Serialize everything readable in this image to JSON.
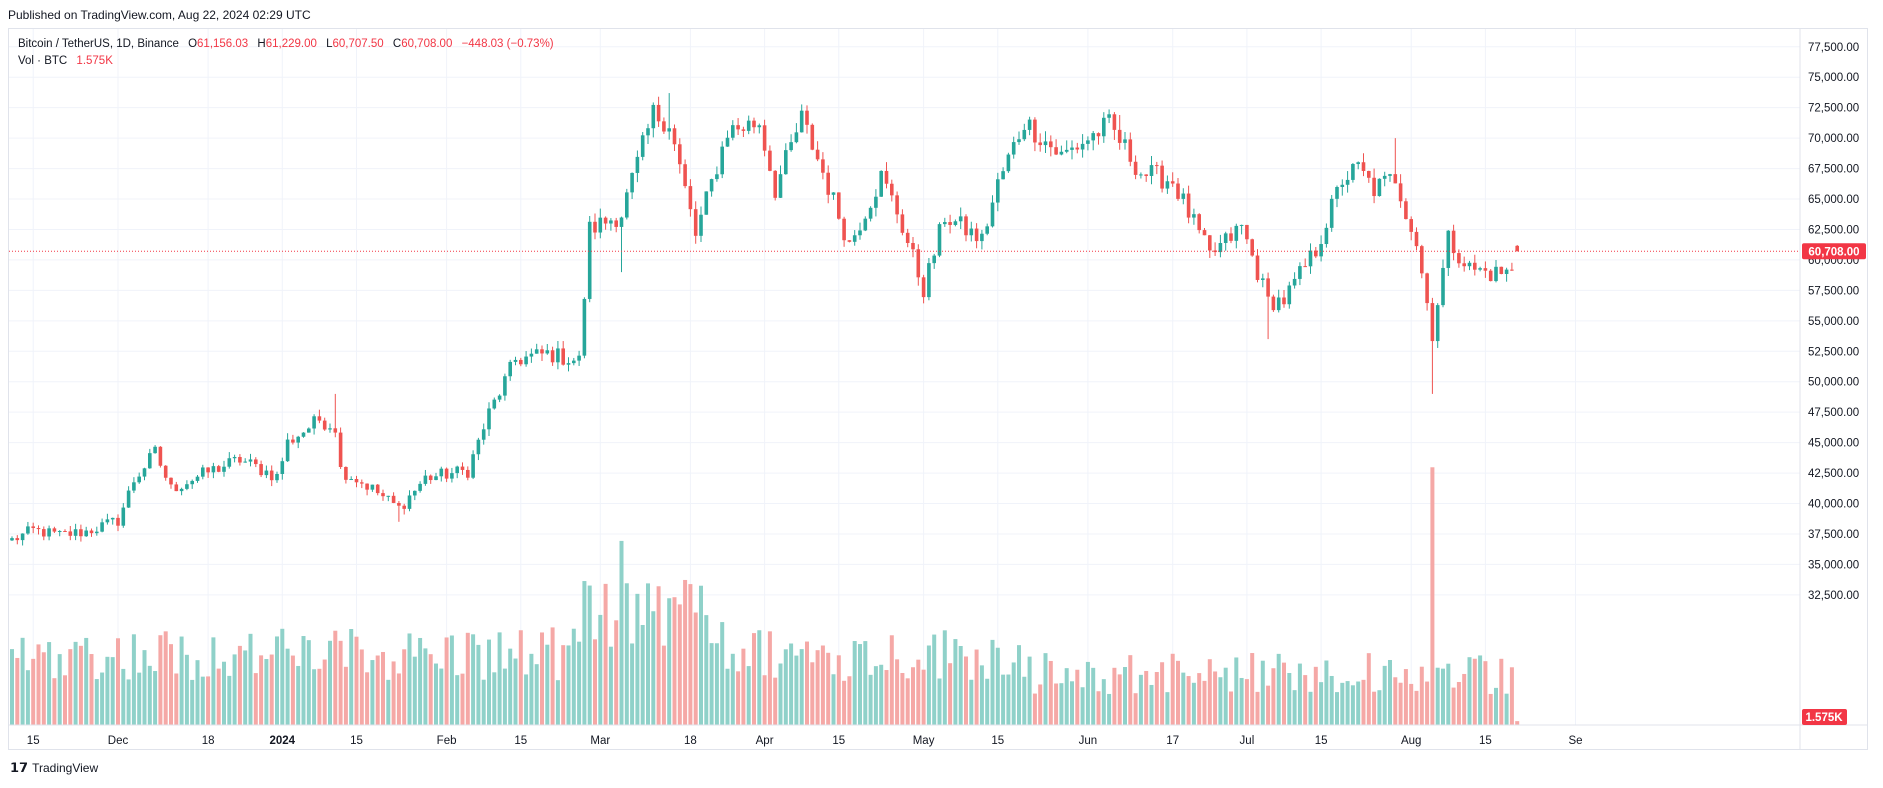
{
  "header": {
    "published": "Published on TradingView.com, Aug 22, 2024 02:29 UTC"
  },
  "legend": {
    "symbol": "Bitcoin / TetherUS, 1D, Binance",
    "o_label": "O",
    "o_value": "61,156.03",
    "h_label": "H",
    "h_value": "61,229.00",
    "l_label": "L",
    "l_value": "60,707.50",
    "c_label": "C",
    "c_value": "60,708.00",
    "change": "−448.03 (−0.73%)",
    "vol_label": "Vol · BTC",
    "vol_value": "1.575K"
  },
  "footer": {
    "brand": "TradingView"
  },
  "colors": {
    "up": "#26a69a",
    "down": "#ef5350",
    "up_vol": "#8fd1c9",
    "down_vol": "#f5a8a6",
    "last_price": "#f23645",
    "grid": "#f0f3fa",
    "axis_text": "#131722"
  },
  "chart_data": {
    "type": "candlestick",
    "symbol": "Bitcoin / TetherUS",
    "interval": "1D",
    "exchange": "Binance",
    "start_date": "2023-11-11",
    "end_date": "2024-08-21",
    "ylim": [
      30500,
      78500
    ],
    "y_ticks": [
      32500,
      35000,
      37500,
      40000,
      42500,
      45000,
      47500,
      50000,
      52500,
      55000,
      57500,
      60000,
      62500,
      65000,
      67500,
      70000,
      72500,
      75000,
      77500
    ],
    "y_tick_labels": [
      "32,500.00",
      "35,000.00",
      "37,500.00",
      "40,000.00",
      "42,500.00",
      "45,000.00",
      "47,500.00",
      "50,000.00",
      "52,500.00",
      "55,000.00",
      "57,500.00",
      "60,000.00",
      "62,500.00",
      "65,000.00",
      "67,500.00",
      "70,000.00",
      "72,500.00",
      "75,000.00",
      "77,500.00"
    ],
    "x_ticks": [
      {
        "label": "15",
        "date": "2023-11-15",
        "bold": false
      },
      {
        "label": "Dec",
        "date": "2023-12-01",
        "bold": false
      },
      {
        "label": "18",
        "date": "2023-12-18",
        "bold": false
      },
      {
        "label": "2024",
        "date": "2024-01-01",
        "bold": true
      },
      {
        "label": "15",
        "date": "2024-01-15",
        "bold": false
      },
      {
        "label": "Feb",
        "date": "2024-02-01",
        "bold": false
      },
      {
        "label": "15",
        "date": "2024-02-15",
        "bold": false
      },
      {
        "label": "Mar",
        "date": "2024-03-01",
        "bold": false
      },
      {
        "label": "18",
        "date": "2024-03-18",
        "bold": false
      },
      {
        "label": "Apr",
        "date": "2024-04-01",
        "bold": false
      },
      {
        "label": "15",
        "date": "2024-04-15",
        "bold": false
      },
      {
        "label": "May",
        "date": "2024-05-01",
        "bold": false
      },
      {
        "label": "15",
        "date": "2024-05-15",
        "bold": false
      },
      {
        "label": "Jun",
        "date": "2024-06-01",
        "bold": false
      },
      {
        "label": "17",
        "date": "2024-06-17",
        "bold": false
      },
      {
        "label": "Jul",
        "date": "2024-07-01",
        "bold": false
      },
      {
        "label": "15",
        "date": "2024-07-15",
        "bold": false
      },
      {
        "label": "Aug",
        "date": "2024-08-01",
        "bold": false
      },
      {
        "label": "15",
        "date": "2024-08-15",
        "bold": false
      },
      {
        "label": "Se",
        "date": "2024-09-01",
        "bold": false
      }
    ],
    "last_price": 60708.0,
    "last_price_label": "60,708.00",
    "last_volume_label": "1.575K",
    "close_keypoints": [
      [
        "2023-11-11",
        37000
      ],
      [
        "2023-11-15",
        37800
      ],
      [
        "2023-11-20",
        37400
      ],
      [
        "2023-11-25",
        37700
      ],
      [
        "2023-12-01",
        38600
      ],
      [
        "2023-12-04",
        41900
      ],
      [
        "2023-12-08",
        44200
      ],
      [
        "2023-12-11",
        41200
      ],
      [
        "2023-12-18",
        42600
      ],
      [
        "2023-12-24",
        43600
      ],
      [
        "2023-12-31",
        42200
      ],
      [
        "2024-01-02",
        45000
      ],
      [
        "2024-01-08",
        46900
      ],
      [
        "2024-01-11",
        46300
      ],
      [
        "2024-01-12",
        42800
      ],
      [
        "2024-01-18",
        41200
      ],
      [
        "2024-01-23",
        39600
      ],
      [
        "2024-01-28",
        42100
      ],
      [
        "2024-02-05",
        42700
      ],
      [
        "2024-02-09",
        47400
      ],
      [
        "2024-02-14",
        51800
      ],
      [
        "2024-02-20",
        52300
      ],
      [
        "2024-02-26",
        51700
      ],
      [
        "2024-02-28",
        62500
      ],
      [
        "2024-03-05",
        63800
      ],
      [
        "2024-03-11",
        72000
      ],
      [
        "2024-03-14",
        71300
      ],
      [
        "2024-03-19",
        62000
      ],
      [
        "2024-03-25",
        70600
      ],
      [
        "2024-03-31",
        71300
      ],
      [
        "2024-04-03",
        65800
      ],
      [
        "2024-04-08",
        71600
      ],
      [
        "2024-04-12",
        67200
      ],
      [
        "2024-04-17",
        61300
      ],
      [
        "2024-04-23",
        66800
      ],
      [
        "2024-04-26",
        64000
      ],
      [
        "2024-05-01",
        57600
      ],
      [
        "2024-05-05",
        63600
      ],
      [
        "2024-05-12",
        61600
      ],
      [
        "2024-05-15",
        66200
      ],
      [
        "2024-05-20",
        71400
      ],
      [
        "2024-05-27",
        68500
      ],
      [
        "2024-06-05",
        71100
      ],
      [
        "2024-06-11",
        67200
      ],
      [
        "2024-06-17",
        66500
      ],
      [
        "2024-06-24",
        60300
      ],
      [
        "2024-06-30",
        62700
      ],
      [
        "2024-07-05",
        56600
      ],
      [
        "2024-07-08",
        56700
      ],
      [
        "2024-07-14",
        60800
      ],
      [
        "2024-07-19",
        66600
      ],
      [
        "2024-07-22",
        67500
      ],
      [
        "2024-07-25",
        65800
      ],
      [
        "2024-07-29",
        66800
      ],
      [
        "2024-08-02",
        61400
      ],
      [
        "2024-08-05",
        54000
      ],
      [
        "2024-08-08",
        61700
      ],
      [
        "2024-08-12",
        59300
      ],
      [
        "2024-08-16",
        58900
      ],
      [
        "2024-08-20",
        59000
      ],
      [
        "2024-08-21",
        60708
      ]
    ],
    "notable_lows": [
      [
        "2024-08-05",
        49000
      ],
      [
        "2024-03-05",
        59000
      ],
      [
        "2024-01-23",
        38500
      ],
      [
        "2024-07-05",
        53500
      ]
    ],
    "notable_highs": [
      [
        "2024-03-14",
        73700
      ],
      [
        "2024-01-11",
        49000
      ],
      [
        "2024-07-29",
        70000
      ],
      [
        "2024-06-07",
        71900
      ]
    ],
    "volume_axis_max": 110000,
    "volume_notes": "Daily volume bars: typical 20K–40K BTC, spikes ~75K (2024-03-05) and ~105K (2024-08-05)."
  }
}
